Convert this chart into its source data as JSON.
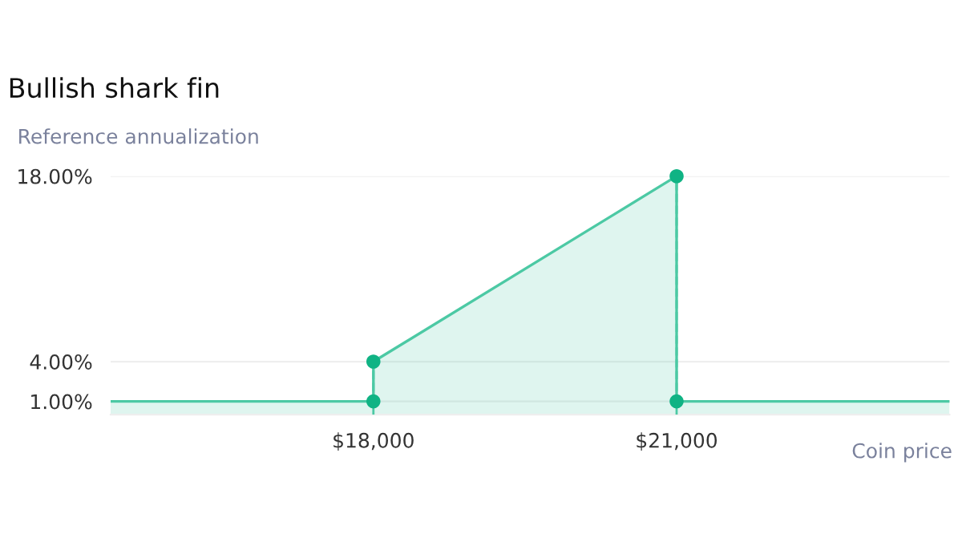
{
  "chart_data": {
    "type": "area",
    "title": "Bullish shark fin",
    "ylabel": "Reference annualization",
    "xlabel": "Coin price",
    "series": [
      {
        "color": "#4cc9a4",
        "x": [
          15400,
          18000,
          18000,
          21000,
          21000,
          23700
        ],
        "values": [
          1,
          1,
          4,
          18,
          1,
          1
        ],
        "marker": "none"
      },
      {
        "type": "scatter",
        "color": "#10b384",
        "x": [
          18000,
          18000,
          21000,
          21000
        ],
        "values": [
          1,
          4,
          18,
          1
        ],
        "marker": "circle"
      }
    ],
    "xlim": [
      15400,
      23700
    ],
    "xticks": [
      {
        "value": 18000,
        "label": "$18,000"
      },
      {
        "value": 21000,
        "label": "$21,000"
      }
    ],
    "ylim": [
      0,
      18
    ],
    "yticks": [
      {
        "value": 1,
        "label": "1.00%"
      },
      {
        "value": 4,
        "label": "4.00%"
      },
      {
        "value": 18,
        "label": "18.00%"
      }
    ],
    "ref_lines": [
      {
        "axis": "x",
        "value": 18000,
        "color": "#4cc9a4",
        "line_style": "dashed"
      },
      {
        "axis": "x",
        "value": 21000,
        "color": "#4cc9a4",
        "line_style": "dashed"
      }
    ],
    "grid": "y",
    "legend": false
  }
}
